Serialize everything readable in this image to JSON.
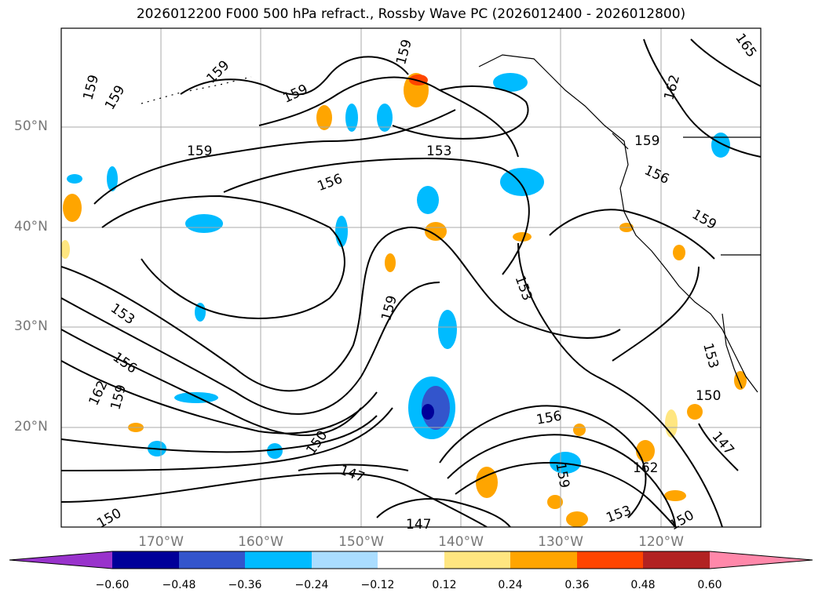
{
  "title": "2026012200 F000 500 hPa refract., Rossby Wave PC (2026012400 - 2026012800)",
  "lat_labels": [
    "50°N",
    "40°N",
    "30°N",
    "20°N"
  ],
  "lon_labels": [
    "170°W",
    "160°W",
    "150°W",
    "140°W",
    "130°W",
    "120°W"
  ],
  "contour_labels": [
    "159",
    "159",
    "159",
    "159",
    "159",
    "159",
    "159",
    "159",
    "159",
    "159",
    "159",
    "153",
    "153",
    "153",
    "153",
    "153",
    "156",
    "156",
    "156",
    "156",
    "150",
    "150",
    "150",
    "150",
    "147",
    "147",
    "147",
    "162",
    "162",
    "162",
    "165"
  ],
  "colorbar": {
    "ticks": [
      "−0.60",
      "−0.48",
      "−0.36",
      "−0.24",
      "−0.12",
      "0.12",
      "0.24",
      "0.36",
      "0.48",
      "0.60"
    ],
    "colors": [
      "#9933cc",
      "#000099",
      "#3355cc",
      "#00bbff",
      "#aaddff",
      "#ffffff",
      "#ffe680",
      "#ffa500",
      "#ff4500",
      "#b22222",
      "#ff88aa"
    ]
  }
}
